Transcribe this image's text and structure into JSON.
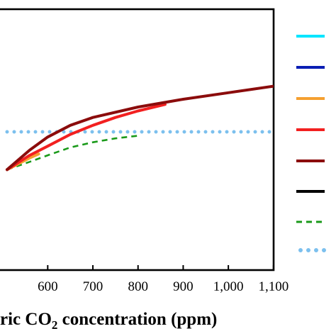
{
  "chart_data": {
    "type": "line",
    "xlabel_parts": [
      "ric CO",
      "2",
      " concentration (ppm)"
    ],
    "xticks": [
      "600",
      "700",
      "800",
      "900",
      "1,000",
      "1,100"
    ],
    "xtick_values": [
      600,
      700,
      800,
      900,
      1000,
      1100
    ],
    "xlim": [
      510,
      1140
    ],
    "ylim": [
      0,
      1
    ],
    "legend_position": "right",
    "series": [
      {
        "color": "#00e5ff",
        "style": "solid",
        "points": []
      },
      {
        "color": "#0a1eb4",
        "style": "solid",
        "points": []
      },
      {
        "color": "#f5a030",
        "style": "solid",
        "points": [
          [
            510,
            0.385
          ],
          [
            560,
            0.43
          ],
          [
            580,
            0.445
          ]
        ]
      },
      {
        "color": "#f22020",
        "style": "solid",
        "points": [
          [
            510,
            0.385
          ],
          [
            560,
            0.44
          ],
          [
            600,
            0.475
          ],
          [
            650,
            0.52
          ],
          [
            700,
            0.555
          ],
          [
            750,
            0.585
          ],
          [
            800,
            0.61
          ],
          [
            860,
            0.635
          ]
        ]
      },
      {
        "color": "#8b0c0c",
        "style": "solid",
        "points": [
          [
            510,
            0.385
          ],
          [
            560,
            0.46
          ],
          [
            600,
            0.51
          ],
          [
            650,
            0.555
          ],
          [
            700,
            0.585
          ],
          [
            800,
            0.625
          ],
          [
            900,
            0.655
          ],
          [
            1000,
            0.68
          ],
          [
            1100,
            0.705
          ],
          [
            1140,
            0.715
          ]
        ]
      },
      {
        "color": "#000000",
        "style": "solid",
        "points": []
      },
      {
        "color": "#1a9a1a",
        "style": "dashed",
        "points": [
          [
            510,
            0.385
          ],
          [
            560,
            0.415
          ],
          [
            600,
            0.44
          ],
          [
            650,
            0.47
          ],
          [
            700,
            0.49
          ],
          [
            750,
            0.505
          ],
          [
            800,
            0.515
          ]
        ]
      },
      {
        "color": "#7cc0ee",
        "style": "dotted",
        "points": [
          [
            510,
            0.53
          ],
          [
            1140,
            0.53
          ]
        ]
      }
    ]
  }
}
